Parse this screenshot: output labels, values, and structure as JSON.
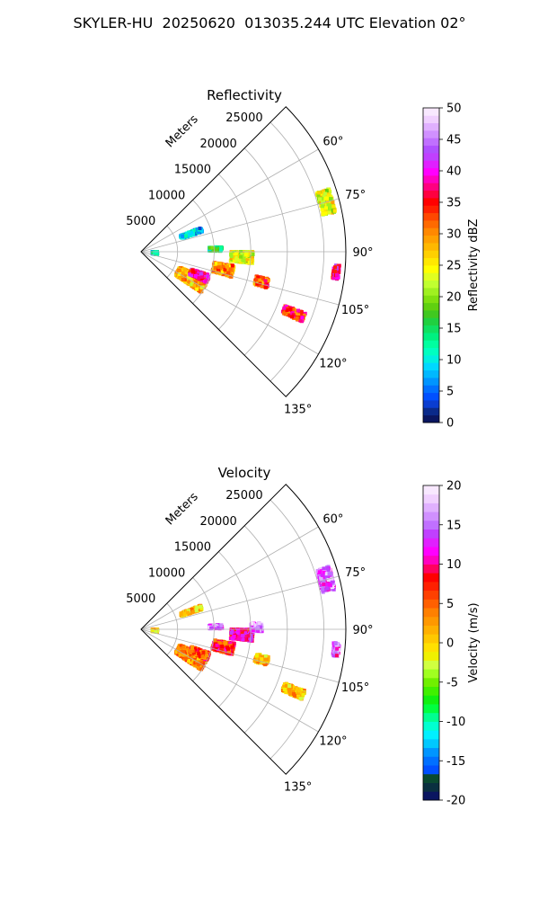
{
  "title": "SKYLER-HU  20250620  013035.244 UTC Elevation 02°",
  "chart_data": [
    {
      "type": "polar-sector-ppi",
      "title": "Reflectivity",
      "radial_label": "Meters",
      "radial_ticks": [
        5000,
        10000,
        15000,
        20000,
        25000
      ],
      "r_range": [
        0,
        28000
      ],
      "azimuth_range_deg": [
        45,
        135
      ],
      "azimuth_tick_labels": [
        "60°",
        "75°",
        "90°",
        "105°",
        "120°",
        "135°"
      ],
      "colorbar": {
        "label": "Reflectivity dBZ",
        "range": [
          0,
          50
        ],
        "ticks": [
          0,
          5,
          10,
          15,
          20,
          25,
          30,
          35,
          40,
          45,
          50
        ],
        "colors": [
          "#0a1660",
          "#0a2a8a",
          "#0a3dd0",
          "#0050ff",
          "#0070ff",
          "#0095ff",
          "#00b8ff",
          "#00d8ff",
          "#00f0e0",
          "#00ffc0",
          "#00ffa0",
          "#00f080",
          "#10e060",
          "#20d040",
          "#40c820",
          "#60d010",
          "#80e010",
          "#a0f020",
          "#c0ff30",
          "#e0ff20",
          "#ffff00",
          "#ffe800",
          "#ffd000",
          "#ffb800",
          "#ffa000",
          "#ff8800",
          "#ff6a00",
          "#ff4800",
          "#ff2000",
          "#ff0000",
          "#ff0040",
          "#ff0080",
          "#ff00c0",
          "#ff00ff",
          "#e020ff",
          "#c040ff",
          "#b050ff",
          "#c070ff",
          "#d090ff",
          "#e0b0ff",
          "#f0d0ff",
          "#f8e8ff"
        ]
      },
      "echo_regions": [
        {
          "az": 118,
          "r": 7800,
          "dr": 4200,
          "daz": 12,
          "value": 28
        },
        {
          "az": 112,
          "r": 8600,
          "dr": 2600,
          "daz": 6,
          "value": 38
        },
        {
          "az": 102,
          "r": 11500,
          "dr": 2800,
          "daz": 7,
          "value": 30
        },
        {
          "az": 93,
          "r": 13800,
          "dr": 3000,
          "daz": 6,
          "value": 24
        },
        {
          "az": 88,
          "r": 10200,
          "dr": 1800,
          "daz": 3,
          "value": 14
        },
        {
          "az": 75,
          "r": 26200,
          "dr": 1800,
          "daz": 7,
          "value": 24
        },
        {
          "az": 104,
          "r": 17000,
          "dr": 1800,
          "daz": 4,
          "value": 32
        },
        {
          "az": 112,
          "r": 22500,
          "dr": 3000,
          "daz": 3,
          "value": 34
        },
        {
          "az": 96,
          "r": 26800,
          "dr": 800,
          "daz": 4,
          "value": 38
        },
        {
          "az": 70,
          "r": 7300,
          "dr": 3000,
          "daz": 4,
          "value": 8
        },
        {
          "az": 95,
          "r": 1900,
          "dr": 700,
          "daz": 10,
          "value": 12
        }
      ]
    },
    {
      "type": "polar-sector-ppi",
      "title": "Velocity",
      "radial_label": "Meters",
      "radial_ticks": [
        5000,
        10000,
        15000,
        20000,
        25000
      ],
      "r_range": [
        0,
        28000
      ],
      "azimuth_range_deg": [
        45,
        135
      ],
      "azimuth_tick_labels": [
        "60°",
        "75°",
        "90°",
        "105°",
        "120°",
        "135°"
      ],
      "colorbar": {
        "label": "Velocity (m/s)",
        "range": [
          -20,
          20
        ],
        "ticks": [
          -20,
          -15,
          -10,
          -5,
          0,
          5,
          10,
          15,
          20
        ],
        "colors": [
          "#0a1660",
          "#0a3040",
          "#0a4a30",
          "#0050ff",
          "#0070ff",
          "#0095ff",
          "#00c8ff",
          "#00f0ff",
          "#00ffd0",
          "#00ff90",
          "#00ff40",
          "#10f010",
          "#40f000",
          "#70f000",
          "#a0ff20",
          "#d0ff40",
          "#f0f000",
          "#ffe000",
          "#ffc800",
          "#ffb000",
          "#ff9800",
          "#ff8000",
          "#ff6000",
          "#ff4000",
          "#ff2000",
          "#ff0000",
          "#ff0060",
          "#ff00c0",
          "#ff00ff",
          "#e020ff",
          "#c040ff",
          "#c070ff",
          "#d090ff",
          "#e0b0ff",
          "#f0d0ff",
          "#f8e8ff"
        ]
      },
      "echo_regions": [
        {
          "az": 118,
          "r": 7800,
          "dr": 4200,
          "daz": 12,
          "value": 4
        },
        {
          "az": 112,
          "r": 8600,
          "dr": 2600,
          "daz": 6,
          "value": 6
        },
        {
          "az": 102,
          "r": 11500,
          "dr": 2800,
          "daz": 7,
          "value": 7
        },
        {
          "az": 93,
          "r": 13800,
          "dr": 3000,
          "daz": 6,
          "value": 10
        },
        {
          "az": 89,
          "r": 15800,
          "dr": 1500,
          "daz": 4,
          "value": 16
        },
        {
          "az": 88,
          "r": 10200,
          "dr": 1800,
          "daz": 3,
          "value": 15
        },
        {
          "az": 75,
          "r": 26200,
          "dr": 1800,
          "daz": 7,
          "value": 15
        },
        {
          "az": 104,
          "r": 17000,
          "dr": 1800,
          "daz": 4,
          "value": 1
        },
        {
          "az": 112,
          "r": 22500,
          "dr": 3000,
          "daz": 3,
          "value": 1
        },
        {
          "az": 96,
          "r": 26800,
          "dr": 800,
          "daz": 4,
          "value": 14
        },
        {
          "az": 70,
          "r": 7300,
          "dr": 3000,
          "daz": 4,
          "value": 1
        },
        {
          "az": 95,
          "r": 1900,
          "dr": 700,
          "daz": 10,
          "value": 0
        }
      ]
    }
  ]
}
